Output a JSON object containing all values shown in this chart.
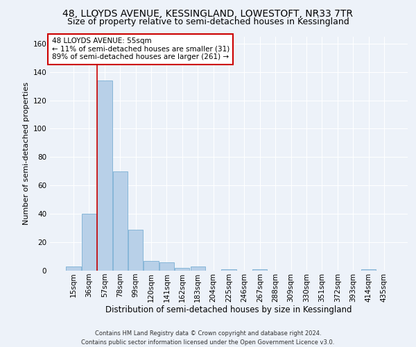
{
  "title": "48, LLOYDS AVENUE, KESSINGLAND, LOWESTOFT, NR33 7TR",
  "subtitle": "Size of property relative to semi-detached houses in Kessingland",
  "xlabel": "Distribution of semi-detached houses by size in Kessingland",
  "ylabel": "Number of semi-detached properties",
  "footnote": "Contains HM Land Registry data © Crown copyright and database right 2024.\nContains public sector information licensed under the Open Government Licence v3.0.",
  "annotation_title": "48 LLOYDS AVENUE: 55sqm",
  "annotation_line2": "← 11% of semi-detached houses are smaller (31)",
  "annotation_line3": "89% of semi-detached houses are larger (261) →",
  "bar_labels": [
    "15sqm",
    "36sqm",
    "57sqm",
    "78sqm",
    "99sqm",
    "120sqm",
    "141sqm",
    "162sqm",
    "183sqm",
    "204sqm",
    "225sqm",
    "246sqm",
    "267sqm",
    "288sqm",
    "309sqm",
    "330sqm",
    "351sqm",
    "372sqm",
    "393sqm",
    "414sqm",
    "435sqm"
  ],
  "bar_values": [
    3,
    40,
    134,
    70,
    29,
    7,
    6,
    2,
    3,
    0,
    1,
    0,
    1,
    0,
    0,
    0,
    0,
    0,
    0,
    1,
    0
  ],
  "bar_color": "#b8d0e8",
  "bar_edge_color": "#7aafd4",
  "highlight_color": "#cc0000",
  "vline_x": 1.5,
  "ylim": [
    0,
    165
  ],
  "yticks": [
    0,
    20,
    40,
    60,
    80,
    100,
    120,
    140,
    160
  ],
  "background_color": "#edf2f9",
  "grid_color": "#ffffff",
  "title_fontsize": 10,
  "subtitle_fontsize": 9,
  "xlabel_fontsize": 8.5,
  "ylabel_fontsize": 8,
  "tick_fontsize": 7.5,
  "annotation_fontsize": 7.5,
  "footnote_fontsize": 6
}
